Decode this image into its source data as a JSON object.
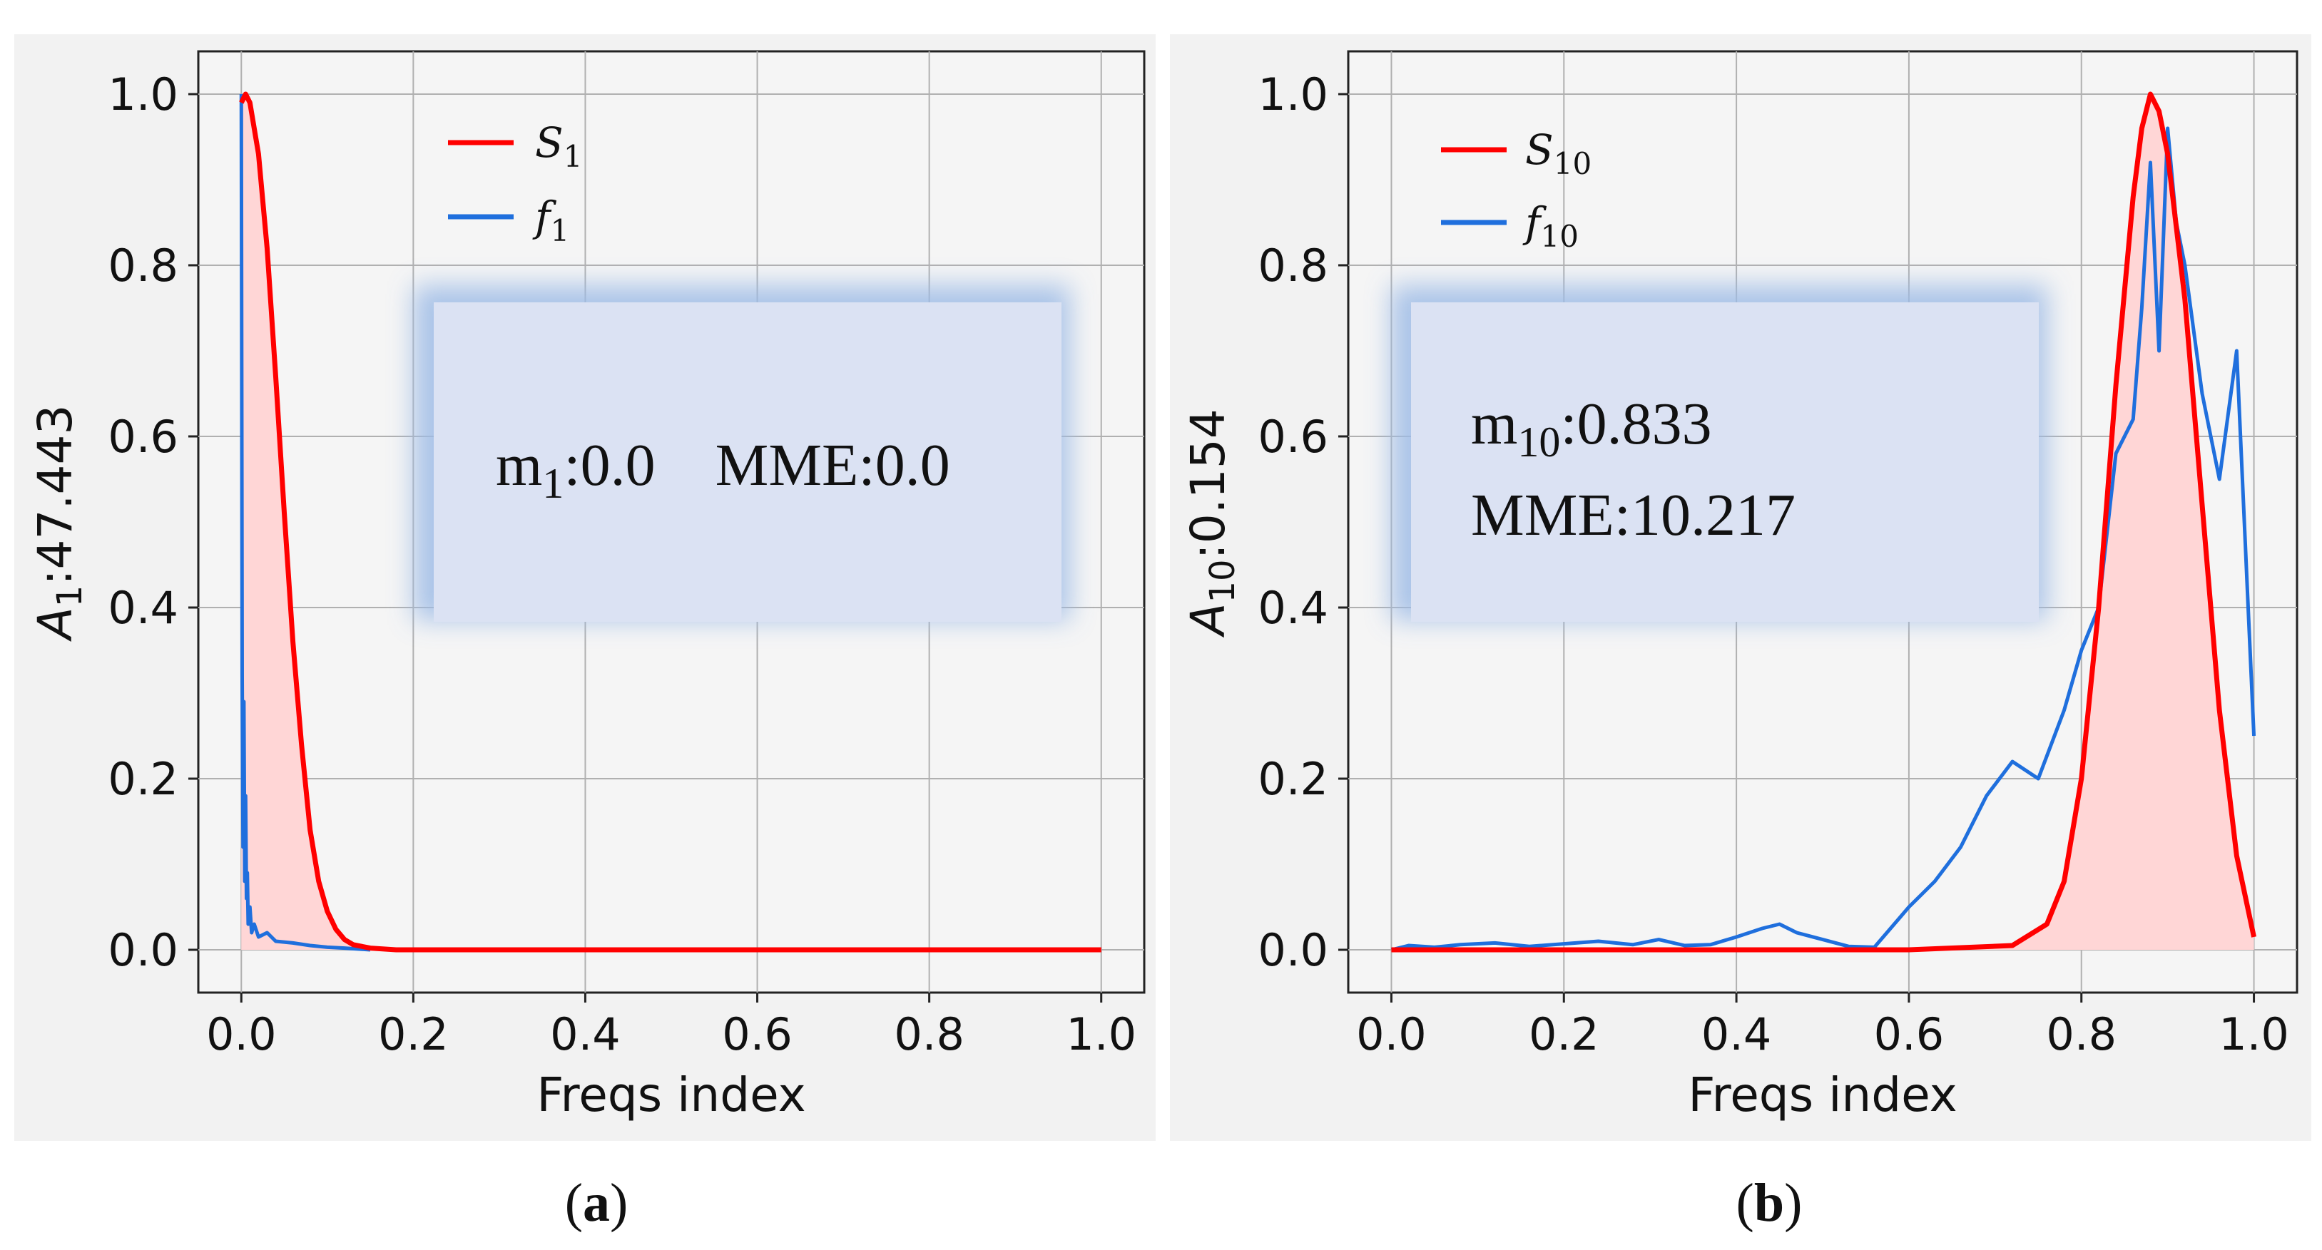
{
  "figure": {
    "panels": [
      {
        "panel_label": "a",
        "xlabel": "Freqs index",
        "ylabel_sym": "A",
        "ylabel_sub": "1",
        "ylabel_val": ":47.443",
        "legend": [
          {
            "sym": "S",
            "sub": "1",
            "color": "#ff0000"
          },
          {
            "sym": "f",
            "sub": "1",
            "color": "#1f6fdd"
          }
        ],
        "info_lines": [
          [
            {
              "t": "m"
            },
            {
              "t": "1",
              "sub": true
            },
            {
              "t": ":0.0    MME:0.0"
            }
          ]
        ]
      },
      {
        "panel_label": "b",
        "xlabel": "Freqs index",
        "ylabel_sym": "A",
        "ylabel_sub": "10",
        "ylabel_val": ":0.154",
        "legend": [
          {
            "sym": "S",
            "sub": "10",
            "color": "#ff0000"
          },
          {
            "sym": "f",
            "sub": "10",
            "color": "#1f6fdd"
          }
        ],
        "info_lines": [
          [
            {
              "t": "m"
            },
            {
              "t": "10",
              "sub": true
            },
            {
              "t": ":0.833"
            }
          ],
          [
            {
              "t": "MME:10.217"
            }
          ]
        ]
      }
    ]
  },
  "chart_data": [
    {
      "type": "line",
      "xlabel": "Freqs index",
      "ylabel": "A1:47.443",
      "xlim": [
        -0.05,
        1.05
      ],
      "ylim": [
        -0.05,
        1.05
      ],
      "xticks": [
        "0.0",
        "0.2",
        "0.4",
        "0.6",
        "0.8",
        "1.0"
      ],
      "yticks": [
        "0.0",
        "0.2",
        "0.4",
        "0.6",
        "0.8",
        "1.0"
      ],
      "grid": true,
      "legend_position": "top-center",
      "series": [
        {
          "name": "S1",
          "color": "#ff0000",
          "fill": "#ffd6d6",
          "x": [
            0.0,
            0.005,
            0.01,
            0.02,
            0.03,
            0.04,
            0.05,
            0.06,
            0.07,
            0.08,
            0.09,
            0.1,
            0.11,
            0.12,
            0.13,
            0.15,
            0.18,
            0.25,
            0.5,
            0.75,
            1.0
          ],
          "y": [
            0.99,
            1.0,
            0.99,
            0.93,
            0.82,
            0.67,
            0.51,
            0.36,
            0.24,
            0.14,
            0.08,
            0.045,
            0.024,
            0.012,
            0.006,
            0.002,
            0.0,
            0.0,
            0.0,
            0.0,
            0.0
          ]
        },
        {
          "name": "f1",
          "color": "#1f6fdd",
          "x": [
            0.0,
            0.001,
            0.002,
            0.003,
            0.004,
            0.005,
            0.006,
            0.007,
            0.008,
            0.01,
            0.012,
            0.015,
            0.02,
            0.03,
            0.04,
            0.06,
            0.08,
            0.1,
            0.12,
            0.15
          ],
          "y": [
            1.0,
            0.32,
            0.12,
            0.29,
            0.08,
            0.18,
            0.06,
            0.09,
            0.03,
            0.05,
            0.02,
            0.03,
            0.015,
            0.02,
            0.01,
            0.008,
            0.005,
            0.003,
            0.002,
            0.0
          ]
        }
      ]
    },
    {
      "type": "line",
      "xlabel": "Freqs index",
      "ylabel": "A10:0.154",
      "xlim": [
        -0.05,
        1.05
      ],
      "ylim": [
        -0.05,
        1.05
      ],
      "xticks": [
        "0.0",
        "0.2",
        "0.4",
        "0.6",
        "0.8",
        "1.0"
      ],
      "yticks": [
        "0.0",
        "0.2",
        "0.4",
        "0.6",
        "0.8",
        "1.0"
      ],
      "grid": true,
      "legend_position": "top-left",
      "series": [
        {
          "name": "S10",
          "color": "#ff0000",
          "fill": "#ffd6d6",
          "x": [
            0.0,
            0.6,
            0.72,
            0.76,
            0.78,
            0.8,
            0.82,
            0.84,
            0.86,
            0.87,
            0.88,
            0.89,
            0.9,
            0.92,
            0.94,
            0.96,
            0.98,
            1.0
          ],
          "y": [
            0.0,
            0.0,
            0.005,
            0.03,
            0.08,
            0.2,
            0.4,
            0.66,
            0.88,
            0.96,
            1.0,
            0.98,
            0.93,
            0.76,
            0.52,
            0.28,
            0.11,
            0.015
          ]
        },
        {
          "name": "f10",
          "color": "#1f6fdd",
          "x": [
            0.0,
            0.02,
            0.05,
            0.08,
            0.12,
            0.16,
            0.2,
            0.24,
            0.28,
            0.31,
            0.34,
            0.37,
            0.4,
            0.43,
            0.45,
            0.47,
            0.5,
            0.53,
            0.56,
            0.6,
            0.63,
            0.66,
            0.69,
            0.72,
            0.75,
            0.78,
            0.8,
            0.82,
            0.84,
            0.86,
            0.87,
            0.88,
            0.89,
            0.9,
            0.91,
            0.92,
            0.94,
            0.96,
            0.98,
            1.0
          ],
          "y": [
            0.0,
            0.005,
            0.003,
            0.006,
            0.008,
            0.004,
            0.007,
            0.01,
            0.006,
            0.012,
            0.005,
            0.006,
            0.015,
            0.025,
            0.03,
            0.02,
            0.012,
            0.004,
            0.003,
            0.05,
            0.08,
            0.12,
            0.18,
            0.22,
            0.2,
            0.28,
            0.35,
            0.4,
            0.58,
            0.62,
            0.75,
            0.92,
            0.7,
            0.96,
            0.85,
            0.8,
            0.65,
            0.55,
            0.7,
            0.25
          ]
        }
      ]
    }
  ]
}
